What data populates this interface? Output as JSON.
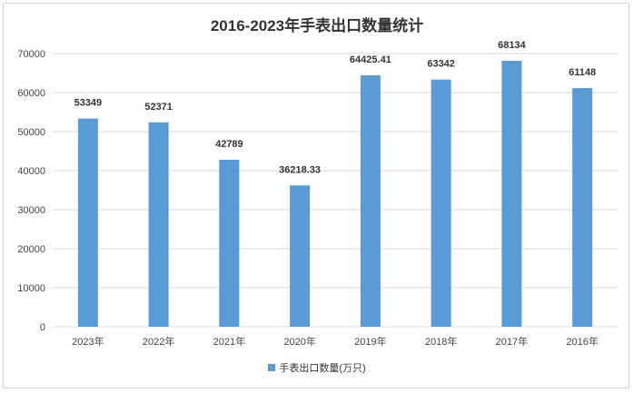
{
  "chart_data": {
    "type": "bar",
    "title": "2016-2023年手表出口数量统计",
    "categories": [
      "2023年",
      "2022年",
      "2021年",
      "2020年",
      "2019年",
      "2018年",
      "2017年",
      "2016年"
    ],
    "series": [
      {
        "name": "手表出口数量(万只)",
        "values": [
          53349,
          52371,
          42789,
          36218.33,
          64425.41,
          63342,
          68134,
          61148
        ],
        "labels": [
          "53349",
          "52371",
          "42789",
          "36218.33",
          "64425.41",
          "63342",
          "68134",
          "61148"
        ]
      }
    ],
    "ylim": [
      0,
      70000
    ],
    "yticks": [
      0,
      10000,
      20000,
      30000,
      40000,
      50000,
      60000,
      70000
    ],
    "grid": true,
    "legend_position": "bottom",
    "bar_color": "#5B9BD5",
    "grid_color": "#d9d9d9"
  }
}
